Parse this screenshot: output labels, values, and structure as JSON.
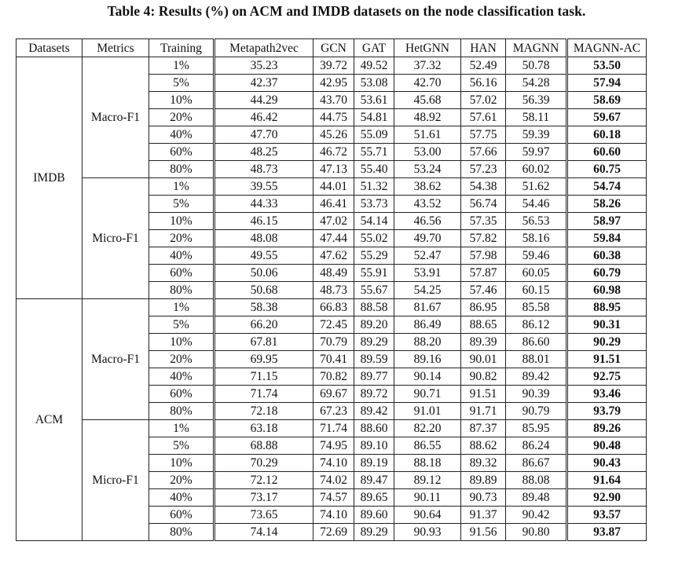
{
  "caption": "Table 4: Results (%) on ACM and IMDB datasets on the node classification task.",
  "headers": [
    "Datasets",
    "Metrics",
    "Training",
    "Metapath2vec",
    "GCN",
    "GAT",
    "HetGNN",
    "HAN",
    "MAGNN",
    "MAGNN-AC"
  ],
  "groups": [
    {
      "dataset": "IMDB",
      "metrics": [
        {
          "name": "Macro-F1",
          "rows": [
            [
              "1%",
              "35.23",
              "39.72",
              "49.52",
              "37.32",
              "52.49",
              "50.78",
              "53.50"
            ],
            [
              "5%",
              "42.37",
              "42.95",
              "53.08",
              "42.70",
              "56.16",
              "54.28",
              "57.94"
            ],
            [
              "10%",
              "44.29",
              "43.70",
              "53.61",
              "45.68",
              "57.02",
              "56.39",
              "58.69"
            ],
            [
              "20%",
              "46.42",
              "44.75",
              "54.81",
              "48.92",
              "57.61",
              "58.11",
              "59.67"
            ],
            [
              "40%",
              "47.70",
              "45.26",
              "55.09",
              "51.61",
              "57.75",
              "59.39",
              "60.18"
            ],
            [
              "60%",
              "48.25",
              "46.72",
              "55.71",
              "53.00",
              "57.66",
              "59.97",
              "60.60"
            ],
            [
              "80%",
              "48.73",
              "47.13",
              "55.40",
              "53.24",
              "57.23",
              "60.02",
              "60.75"
            ]
          ]
        },
        {
          "name": "Micro-F1",
          "rows": [
            [
              "1%",
              "39.55",
              "44.01",
              "51.32",
              "38.62",
              "54.38",
              "51.62",
              "54.74"
            ],
            [
              "5%",
              "44.33",
              "46.41",
              "53.73",
              "43.52",
              "56.74",
              "54.46",
              "58.26"
            ],
            [
              "10%",
              "46.15",
              "47.02",
              "54.14",
              "46.56",
              "57.35",
              "56.53",
              "58.97"
            ],
            [
              "20%",
              "48.08",
              "47.44",
              "55.02",
              "49.70",
              "57.82",
              "58.16",
              "59.84"
            ],
            [
              "40%",
              "49.55",
              "47.62",
              "55.29",
              "52.47",
              "57.98",
              "59.46",
              "60.38"
            ],
            [
              "60%",
              "50.06",
              "48.49",
              "55.91",
              "53.91",
              "57.87",
              "60.05",
              "60.79"
            ],
            [
              "80%",
              "50.68",
              "48.73",
              "55.67",
              "54.25",
              "57.46",
              "60.15",
              "60.98"
            ]
          ]
        }
      ]
    },
    {
      "dataset": "ACM",
      "metrics": [
        {
          "name": "Macro-F1",
          "rows": [
            [
              "1%",
              "58.38",
              "66.83",
              "88.58",
              "81.67",
              "86.95",
              "85.58",
              "88.95"
            ],
            [
              "5%",
              "66.20",
              "72.45",
              "89.20",
              "86.49",
              "88.65",
              "86.12",
              "90.31"
            ],
            [
              "10%",
              "67.81",
              "70.79",
              "89.29",
              "88.20",
              "89.39",
              "86.60",
              "90.29"
            ],
            [
              "20%",
              "69.95",
              "70.41",
              "89.59",
              "89.16",
              "90.01",
              "88.01",
              "91.51"
            ],
            [
              "40%",
              "71.15",
              "70.82",
              "89.77",
              "90.14",
              "90.82",
              "89.42",
              "92.75"
            ],
            [
              "60%",
              "71.74",
              "69.67",
              "89.72",
              "90.71",
              "91.51",
              "90.39",
              "93.46"
            ],
            [
              "80%",
              "72.18",
              "67.23",
              "89.42",
              "91.01",
              "91.71",
              "90.79",
              "93.79"
            ]
          ]
        },
        {
          "name": "Micro-F1",
          "rows": [
            [
              "1%",
              "63.18",
              "71.74",
              "88.60",
              "82.20",
              "87.37",
              "85.95",
              "89.26"
            ],
            [
              "5%",
              "68.88",
              "74.95",
              "89.10",
              "86.55",
              "88.62",
              "86.24",
              "90.48"
            ],
            [
              "10%",
              "70.29",
              "74.10",
              "89.19",
              "88.18",
              "89.32",
              "86.67",
              "90.43"
            ],
            [
              "20%",
              "72.12",
              "74.02",
              "89.47",
              "89.12",
              "89.89",
              "88.08",
              "91.64"
            ],
            [
              "40%",
              "73.17",
              "74.57",
              "89.65",
              "90.11",
              "90.73",
              "89.48",
              "92.90"
            ],
            [
              "60%",
              "73.65",
              "74.10",
              "89.60",
              "90.64",
              "91.37",
              "90.42",
              "93.57"
            ],
            [
              "80%",
              "74.14",
              "72.69",
              "89.29",
              "90.93",
              "91.56",
              "90.80",
              "93.87"
            ]
          ]
        }
      ]
    }
  ]
}
